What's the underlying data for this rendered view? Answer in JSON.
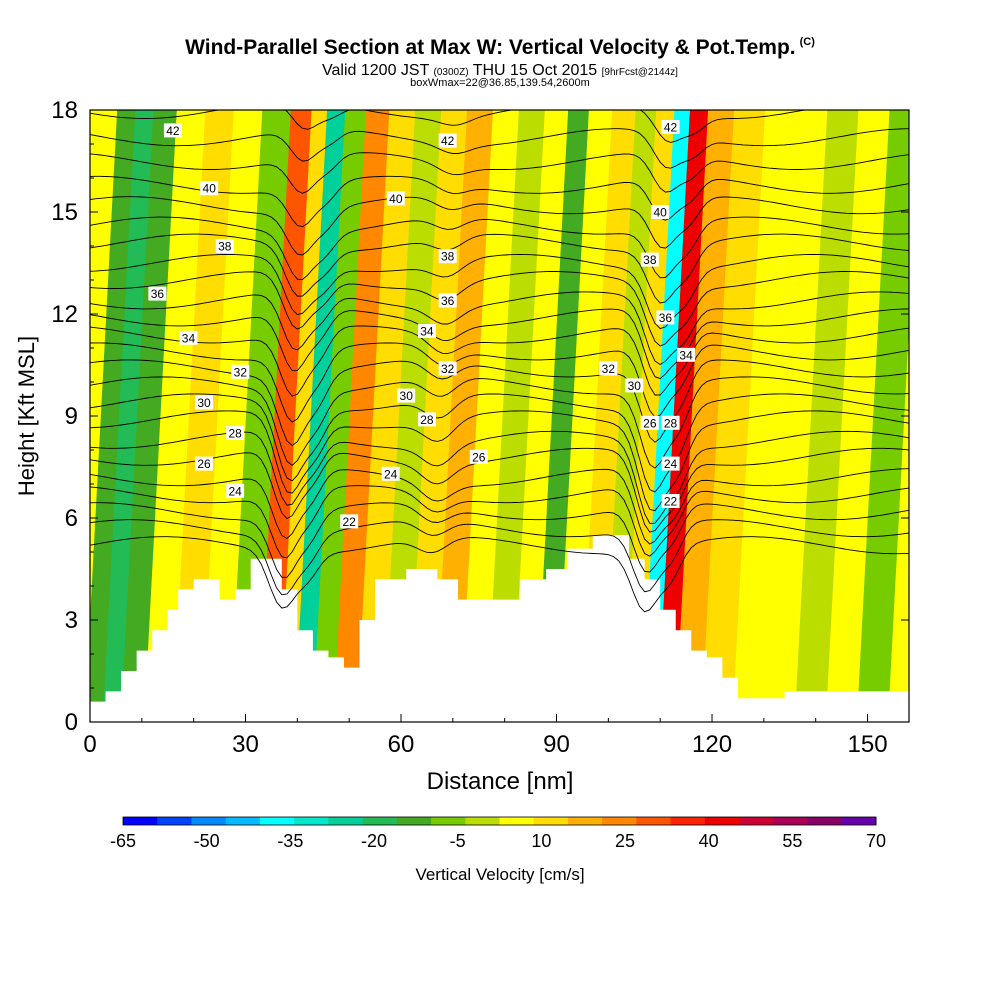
{
  "chart_data": {
    "type": "heatmap",
    "title": "Wind-Parallel Section at Max W: Vertical Velocity & Pot.Temp.",
    "title_suffix": "(C)",
    "subtitle_main_a": "Valid 1200 JST",
    "subtitle_small_a": "(0300Z)",
    "subtitle_main_b": "THU 15 Oct 2015",
    "subtitle_small_b": "[9hrFcst@2144z]",
    "subtitle2": "boxWmax=22@36.85,139.54,2600m",
    "xlabel": "Distance [nm]",
    "ylabel": "Height [Kft MSL]",
    "xlim": [
      0,
      158
    ],
    "ylim": [
      0,
      18
    ],
    "xticks": [
      0,
      30,
      60,
      90,
      120,
      150
    ],
    "yticks": [
      0,
      3,
      6,
      9,
      12,
      15,
      18
    ],
    "colorbar": {
      "label": "Vertical Velocity [cm/s]",
      "tick_labels": [
        "-65",
        "-50",
        "-35",
        "-20",
        "-5",
        "10",
        "25",
        "40",
        "55",
        "70"
      ],
      "tick_values": [
        -65,
        -50,
        -35,
        -20,
        -5,
        10,
        25,
        40,
        55,
        70
      ],
      "colors": [
        "#0000ff",
        "#0044ff",
        "#0088ff",
        "#00bbff",
        "#00ffff",
        "#00e8cc",
        "#00d099",
        "#22bb55",
        "#44aa22",
        "#77cc00",
        "#bbdd00",
        "#ffff00",
        "#ffdd00",
        "#ffb000",
        "#ff8800",
        "#ff5500",
        "#ff2200",
        "#ee0000",
        "#cc0033",
        "#aa0055",
        "#880066",
        "#6600aa"
      ]
    },
    "columns": [
      {
        "x": 1,
        "w": -10
      },
      {
        "x": 4,
        "w": -22
      },
      {
        "x": 8,
        "w": -12
      },
      {
        "x": 13,
        "w": 4
      },
      {
        "x": 19,
        "w": 9
      },
      {
        "x": 24,
        "w": 6
      },
      {
        "x": 30,
        "w": -4
      },
      {
        "x": 35,
        "w": 30
      },
      {
        "x": 38,
        "w": 10
      },
      {
        "x": 41,
        "w": -25
      },
      {
        "x": 45,
        "w": -5
      },
      {
        "x": 49,
        "w": 22
      },
      {
        "x": 54,
        "w": 13
      },
      {
        "x": 59,
        "w": 2
      },
      {
        "x": 64,
        "w": 9
      },
      {
        "x": 69,
        "w": 15
      },
      {
        "x": 74,
        "w": 4
      },
      {
        "x": 79,
        "w": -2
      },
      {
        "x": 84,
        "w": 8
      },
      {
        "x": 88,
        "w": -15
      },
      {
        "x": 92,
        "w": 5
      },
      {
        "x": 97,
        "w": 12
      },
      {
        "x": 101,
        "w": -3
      },
      {
        "x": 105,
        "w": 10
      },
      {
        "x": 108,
        "w": -38
      },
      {
        "x": 111,
        "w": 42
      },
      {
        "x": 115,
        "w": 16
      },
      {
        "x": 121,
        "w": 9
      },
      {
        "x": 127,
        "w": 5
      },
      {
        "x": 133,
        "w": 8
      },
      {
        "x": 139,
        "w": 1
      },
      {
        "x": 145,
        "w": 4
      },
      {
        "x": 151,
        "w": -6
      },
      {
        "x": 157,
        "w": 5
      }
    ],
    "terrain": [
      {
        "x": 0,
        "h": 0.6
      },
      {
        "x": 3,
        "h": 0.9
      },
      {
        "x": 6,
        "h": 1.5
      },
      {
        "x": 9,
        "h": 2.1
      },
      {
        "x": 12,
        "h": 2.7
      },
      {
        "x": 15,
        "h": 3.3
      },
      {
        "x": 17,
        "h": 3.9
      },
      {
        "x": 20,
        "h": 4.2
      },
      {
        "x": 25,
        "h": 3.6
      },
      {
        "x": 28,
        "h": 3.9
      },
      {
        "x": 31,
        "h": 4.8
      },
      {
        "x": 37,
        "h": 3.9
      },
      {
        "x": 40,
        "h": 2.7
      },
      {
        "x": 43,
        "h": 2.1
      },
      {
        "x": 46,
        "h": 1.9
      },
      {
        "x": 49,
        "h": 1.6
      },
      {
        "x": 52,
        "h": 3.0
      },
      {
        "x": 55,
        "h": 4.2
      },
      {
        "x": 61,
        "h": 4.5
      },
      {
        "x": 67,
        "h": 4.2
      },
      {
        "x": 71,
        "h": 3.6
      },
      {
        "x": 83,
        "h": 4.2
      },
      {
        "x": 88,
        "h": 4.5
      },
      {
        "x": 92,
        "h": 5.1
      },
      {
        "x": 97,
        "h": 5.5
      },
      {
        "x": 104,
        "h": 4.8
      },
      {
        "x": 107,
        "h": 4.2
      },
      {
        "x": 110,
        "h": 3.3
      },
      {
        "x": 113,
        "h": 2.7
      },
      {
        "x": 116,
        "h": 2.1
      },
      {
        "x": 119,
        "h": 1.9
      },
      {
        "x": 122,
        "h": 1.3
      },
      {
        "x": 125,
        "h": 0.7
      },
      {
        "x": 130,
        "h": 0.7
      },
      {
        "x": 134,
        "h": 0.9
      },
      {
        "x": 158,
        "h": 0.9
      }
    ],
    "isentropes": {
      "levels": [
        21,
        22,
        23,
        24,
        25,
        26,
        27,
        28,
        29,
        30,
        31,
        32,
        33,
        34,
        35,
        36,
        37,
        38,
        39,
        40,
        41,
        42,
        43,
        44
      ],
      "base_heights": [
        5.2,
        5.7,
        6.2,
        6.7,
        7.2,
        7.8,
        8.3,
        8.9,
        9.4,
        9.9,
        10.4,
        10.9,
        11.4,
        11.9,
        12.4,
        13.0,
        13.5,
        14.1,
        14.6,
        15.2,
        15.8,
        16.5,
        17.2,
        18.0
      ],
      "dips": [
        {
          "x": 38,
          "depth": 2.2,
          "width": 3.5
        },
        {
          "x": 43,
          "depth": 0.9,
          "width": 3
        },
        {
          "x": 67,
          "depth": 0.6,
          "width": 4
        },
        {
          "x": 108,
          "depth": 2.4,
          "width": 3.5
        },
        {
          "x": 113,
          "depth": 1.2,
          "width": 3
        }
      ]
    },
    "contour_labels": [
      {
        "text": "42",
        "x": 16,
        "y": 17.4
      },
      {
        "text": "42",
        "x": 69,
        "y": 17.1
      },
      {
        "text": "42",
        "x": 112,
        "y": 17.5
      },
      {
        "text": "40",
        "x": 23,
        "y": 15.7
      },
      {
        "text": "40",
        "x": 59,
        "y": 15.4
      },
      {
        "text": "40",
        "x": 110,
        "y": 15.0
      },
      {
        "text": "38",
        "x": 26,
        "y": 14.0
      },
      {
        "text": "38",
        "x": 69,
        "y": 13.7
      },
      {
        "text": "38",
        "x": 108,
        "y": 13.6
      },
      {
        "text": "36",
        "x": 13,
        "y": 12.6
      },
      {
        "text": "36",
        "x": 69,
        "y": 12.4
      },
      {
        "text": "36",
        "x": 111,
        "y": 11.9
      },
      {
        "text": "34",
        "x": 19,
        "y": 11.3
      },
      {
        "text": "34",
        "x": 65,
        "y": 11.5
      },
      {
        "text": "34",
        "x": 115,
        "y": 10.8
      },
      {
        "text": "32",
        "x": 29,
        "y": 10.3
      },
      {
        "text": "32",
        "x": 69,
        "y": 10.4
      },
      {
        "text": "32",
        "x": 100,
        "y": 10.4
      },
      {
        "text": "30",
        "x": 22,
        "y": 9.4
      },
      {
        "text": "30",
        "x": 61,
        "y": 9.6
      },
      {
        "text": "30",
        "x": 105,
        "y": 9.9
      },
      {
        "text": "28",
        "x": 28,
        "y": 8.5
      },
      {
        "text": "28",
        "x": 65,
        "y": 8.9
      },
      {
        "text": "28",
        "x": 112,
        "y": 8.8
      },
      {
        "text": "26",
        "x": 22,
        "y": 7.6
      },
      {
        "text": "26",
        "x": 75,
        "y": 7.8
      },
      {
        "text": "26",
        "x": 108,
        "y": 8.8
      },
      {
        "text": "24",
        "x": 28,
        "y": 6.8
      },
      {
        "text": "24",
        "x": 58,
        "y": 7.3
      },
      {
        "text": "24",
        "x": 112,
        "y": 7.6
      },
      {
        "text": "22",
        "x": 50,
        "y": 5.9
      },
      {
        "text": "22",
        "x": 112,
        "y": 6.5
      }
    ]
  }
}
